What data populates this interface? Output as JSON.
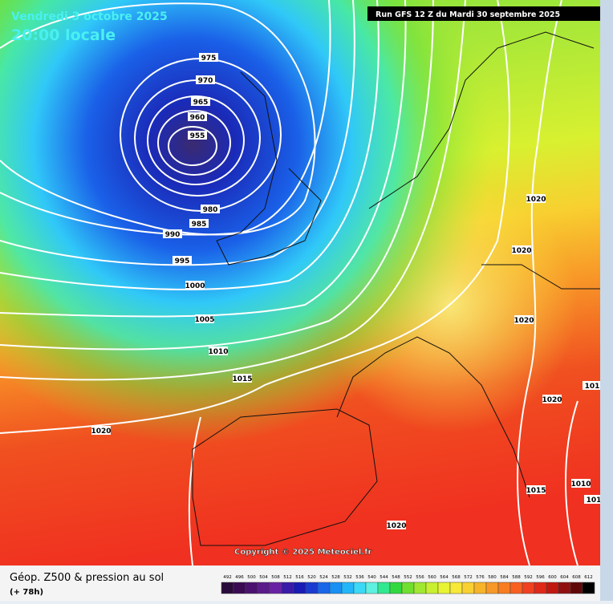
{
  "header": {
    "date": "Vendredi 3 octobre 2025",
    "time": "20:00 locale",
    "run": "Run GFS 12 Z du Mardi 30 septembre 2025"
  },
  "isobar_labels": [
    "975",
    "970",
    "965",
    "960",
    "955",
    "980",
    "985",
    "990",
    "995",
    "1000",
    "1005",
    "1010",
    "1015",
    "1020",
    "1020",
    "1020",
    "1020",
    "1020",
    "1015",
    "1010",
    "1020",
    "101",
    "101"
  ],
  "copyright": "Copyright © 2025 Meteociel.fr",
  "footer": {
    "title": "Géop. Z500 & pression au sol",
    "lead": "(+ 78h)"
  },
  "scale": {
    "labels": [
      "492",
      "496",
      "500",
      "504",
      "508",
      "512",
      "516",
      "520",
      "524",
      "528",
      "532",
      "536",
      "540",
      "544",
      "548",
      "552",
      "556",
      "560",
      "564",
      "568",
      "572",
      "576",
      "580",
      "584",
      "588",
      "592",
      "596",
      "600",
      "604",
      "608",
      "612"
    ],
    "colors": [
      "#2a0a3a",
      "#3a0a52",
      "#4a126e",
      "#5a1a8a",
      "#6a22a4",
      "#3a1aa8",
      "#1a1ab4",
      "#1a3ad0",
      "#1a66e8",
      "#1a90f4",
      "#22b6f8",
      "#3cd8f8",
      "#5ef0e0",
      "#30e890",
      "#30d840",
      "#70e030",
      "#a0e830",
      "#c8f030",
      "#e8f430",
      "#f8e838",
      "#f8d030",
      "#f8b428",
      "#f89828",
      "#f87c20",
      "#f86020",
      "#f04020",
      "#e02818",
      "#c01810",
      "#901010",
      "#600808",
      "#000000"
    ]
  }
}
